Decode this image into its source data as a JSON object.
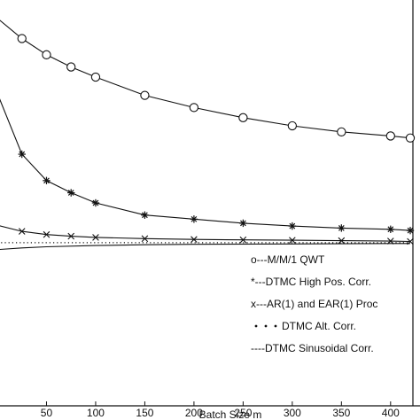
{
  "chart_data": {
    "type": "line",
    "xlabel": "Batch Size m",
    "ylabel": "",
    "title": "",
    "xlim": [
      0,
      420
    ],
    "ylim": [
      0,
      1.0
    ],
    "x_ticks": [
      "50",
      "100",
      "150",
      "200",
      "250",
      "300",
      "350",
      "400"
    ],
    "x_tick_values": [
      50,
      100,
      150,
      200,
      250,
      300,
      350,
      400
    ],
    "grid": false,
    "legend_position": "lower-right",
    "series": [
      {
        "name": "o---M/M/1 QWT",
        "marker": "circle",
        "line": "solid",
        "x": [
          0,
          25,
          50,
          75,
          100,
          150,
          200,
          250,
          300,
          350,
          400,
          420
        ],
        "y": [
          0.955,
          0.905,
          0.865,
          0.835,
          0.81,
          0.765,
          0.735,
          0.71,
          0.69,
          0.675,
          0.665,
          0.66
        ]
      },
      {
        "name": "*---DTMC High Pos. Corr.",
        "marker": "star",
        "line": "solid",
        "x": [
          0,
          25,
          50,
          75,
          100,
          150,
          200,
          250,
          300,
          350,
          400,
          420
        ],
        "y": [
          0.77,
          0.62,
          0.555,
          0.525,
          0.5,
          0.47,
          0.46,
          0.45,
          0.443,
          0.438,
          0.435,
          0.432
        ]
      },
      {
        "name": "x---AR(1) and EAR(1) Proc",
        "marker": "x",
        "line": "solid",
        "x": [
          0,
          25,
          50,
          75,
          100,
          150,
          200,
          250,
          300,
          350,
          400,
          420
        ],
        "y": [
          0.445,
          0.43,
          0.422,
          0.418,
          0.415,
          0.412,
          0.41,
          0.409,
          0.408,
          0.407,
          0.406,
          0.405
        ]
      },
      {
        "name": "DTMC Alt. Corr.",
        "marker": "dot",
        "line": "dotted",
        "x": [
          0,
          100,
          200,
          300,
          400,
          420
        ],
        "y": [
          0.402,
          0.402,
          0.402,
          0.402,
          0.402,
          0.402
        ]
      },
      {
        "name": "----DTMC Sinusoidal Corr.",
        "marker": "none",
        "line": "solid",
        "x": [
          0,
          25,
          50,
          100,
          150,
          200,
          300,
          400,
          420
        ],
        "y": [
          0.385,
          0.389,
          0.392,
          0.395,
          0.397,
          0.398,
          0.399,
          0.4,
          0.4
        ]
      }
    ],
    "legend": [
      {
        "label": "o---M/M/1 QWT",
        "marker": "circle",
        "line": "none"
      },
      {
        "label": "*---DTMC High Pos. Corr.",
        "marker": "star",
        "line": "none"
      },
      {
        "label": "x---AR(1) and EAR(1) Proc",
        "marker": "x",
        "line": "none"
      },
      {
        "label": "DTMC Alt. Corr.",
        "marker": "dots",
        "line": "none"
      },
      {
        "label": "----DTMC Sinusoidal Corr.",
        "marker": "none",
        "line": "none"
      }
    ],
    "colors": {
      "line": "#111111",
      "background": "#ffffff"
    }
  }
}
